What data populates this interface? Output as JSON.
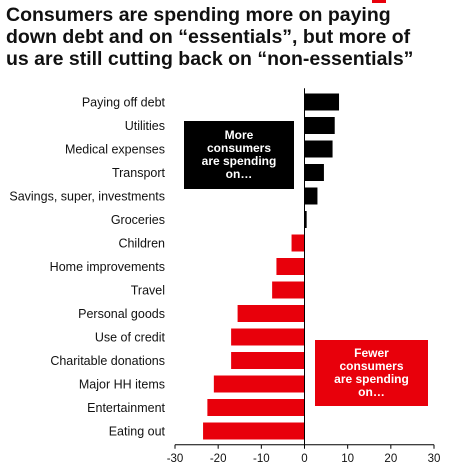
{
  "chart_data": {
    "type": "bar",
    "orientation": "horizontal",
    "title": "Consumers are spending more on paying down debt and on “essentials”, but more of us are still cutting back on “non-essentials”",
    "title_lines": [
      "Consumers are spending more on paying",
      "down debt and on “essentials”, but more of",
      "us are still cutting back on “non-essentials”"
    ],
    "categories": [
      "Paying off debt",
      "Utilities",
      "Medical expenses",
      "Transport",
      "Savings, super, investments",
      "Groceries",
      "Children",
      "Home improvements",
      "Travel",
      "Personal goods",
      "Use of credit",
      "Charitable donations",
      "Major HH items",
      "Entertainment",
      "Eating out"
    ],
    "values": [
      8,
      7,
      6.5,
      4.5,
      3,
      0.5,
      -3,
      -6.5,
      -7.5,
      -15.5,
      -17,
      -17,
      -21,
      -22.5,
      -23.5
    ],
    "xlim": [
      -30,
      30
    ],
    "xticks": [
      "-30",
      "-20",
      "-10",
      "0",
      "10",
      "20",
      "30"
    ],
    "xlabel": "",
    "ylabel": "",
    "grid": false,
    "colors": {
      "positive": "#000000",
      "negative": "#e8000b"
    },
    "annotations": [
      {
        "text": "More\nconsumers\nare spending\non…",
        "style": "black-box"
      },
      {
        "text": "Fewer\nconsumers\nare spending\non…",
        "style": "red-box"
      }
    ]
  }
}
